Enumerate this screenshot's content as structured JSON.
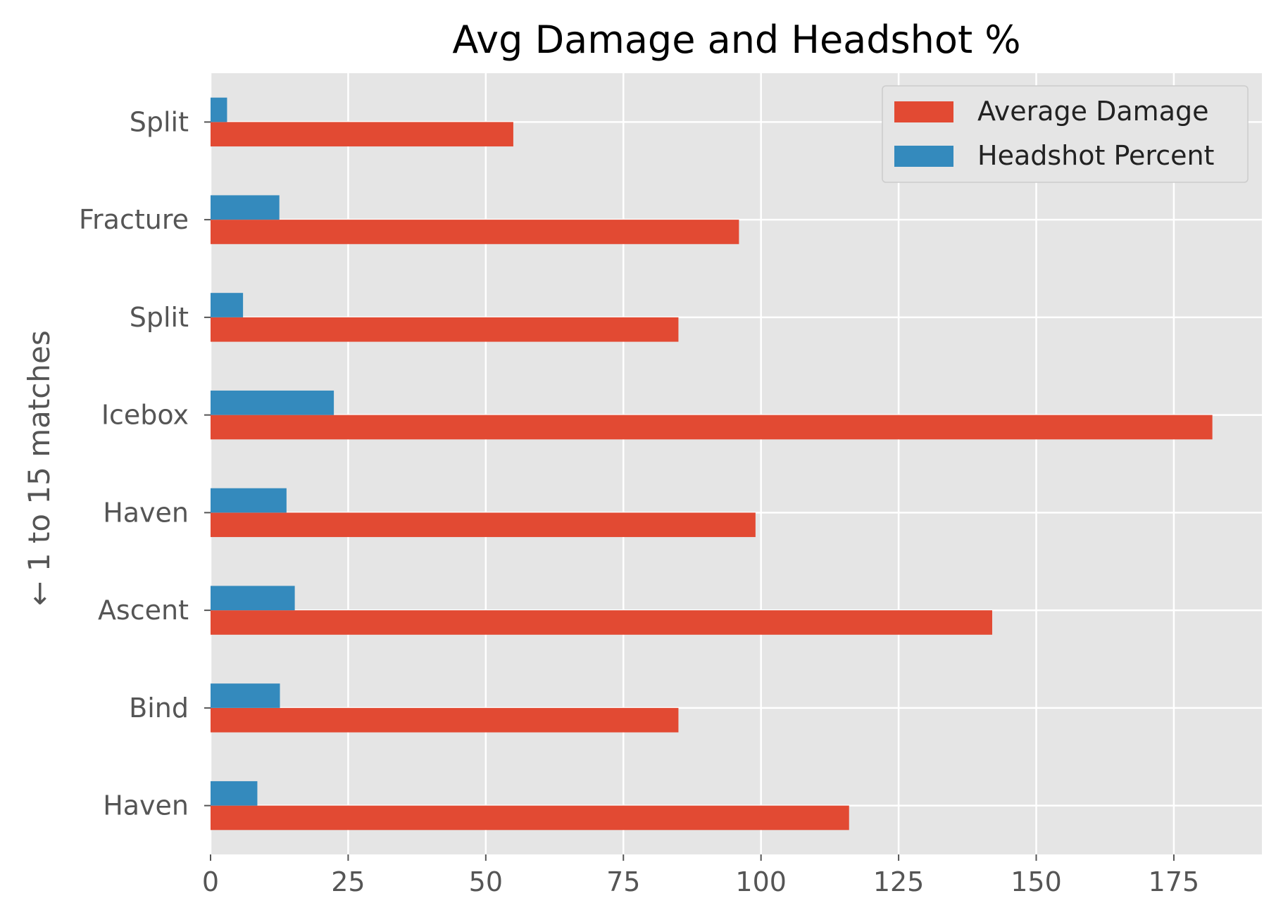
{
  "chart_data": {
    "type": "bar",
    "orientation": "horizontal",
    "title": "Avg Damage and Headshot %",
    "xlabel": "",
    "ylabel": "← 1 to 15 matches",
    "categories": [
      "Haven",
      "Bind",
      "Ascent",
      "Haven",
      "Icebox",
      "Split",
      "Fracture",
      "Split"
    ],
    "series": [
      {
        "name": "Average Damage",
        "color": "#E24A33",
        "values": [
          116,
          85,
          142,
          99,
          182,
          85,
          96,
          55
        ]
      },
      {
        "name": "Headshot Percent",
        "color": "#348ABD",
        "values": [
          8.5,
          12.6,
          15.3,
          13.8,
          22.4,
          5.9,
          12.5,
          3.0
        ]
      }
    ],
    "xlim": [
      0,
      191
    ],
    "xticks": [
      0,
      25,
      50,
      75,
      100,
      125,
      150,
      175
    ],
    "grid": true,
    "legend_position": "top-right",
    "background": "#E5E5E5"
  }
}
